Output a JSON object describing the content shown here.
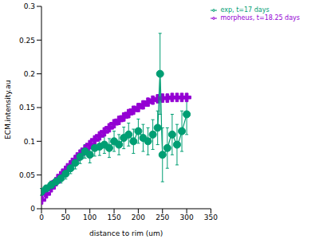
{
  "chart_data": {
    "type": "line",
    "xlabel": "distance to rim (um)",
    "ylabel": "ECM.intensity.au",
    "xlim": [
      0,
      350
    ],
    "xticks": [
      0,
      50,
      100,
      150,
      200,
      250,
      300,
      350
    ],
    "ylim": [
      0,
      0.3
    ],
    "yticks": [
      0,
      0.05,
      0.1,
      0.15,
      0.2,
      0.25,
      0.3
    ],
    "grid": false,
    "legend": "top right",
    "series": [
      {
        "name": "morpheus, t=18.25 days",
        "color": "#9400d3",
        "marker": "cross",
        "x": [
          0,
          10,
          20,
          30,
          40,
          50,
          60,
          70,
          80,
          90,
          100,
          110,
          120,
          130,
          140,
          150,
          160,
          170,
          180,
          190,
          200,
          210,
          220,
          230,
          240,
          250,
          260,
          270,
          280,
          290,
          300
        ],
        "values": [
          0.013,
          0.022,
          0.031,
          0.04,
          0.049,
          0.057,
          0.065,
          0.073,
          0.081,
          0.088,
          0.095,
          0.102,
          0.108,
          0.114,
          0.12,
          0.126,
          0.131,
          0.136,
          0.141,
          0.146,
          0.15,
          0.154,
          0.158,
          0.161,
          0.163,
          0.164,
          0.164,
          0.165,
          0.165,
          0.165,
          0.165
        ]
      },
      {
        "name": "exp, t=17 days",
        "color": "#009e73",
        "marker": "circle",
        "x": [
          0,
          10,
          20,
          30,
          40,
          50,
          60,
          70,
          80,
          90,
          100,
          110,
          120,
          130,
          140,
          150,
          160,
          170,
          180,
          190,
          200,
          210,
          220,
          230,
          240,
          245,
          250,
          260,
          270,
          280,
          290,
          300
        ],
        "values": [
          0.025,
          0.03,
          0.035,
          0.04,
          0.045,
          0.052,
          0.06,
          0.068,
          0.077,
          0.085,
          0.08,
          0.09,
          0.092,
          0.095,
          0.09,
          0.1,
          0.095,
          0.105,
          0.11,
          0.1,
          0.115,
          0.105,
          0.1,
          0.11,
          0.12,
          0.2,
          0.08,
          0.09,
          0.11,
          0.095,
          0.115,
          0.14
        ],
        "errors": [
          0.005,
          0.005,
          0.006,
          0.006,
          0.007,
          0.008,
          0.008,
          0.009,
          0.01,
          0.01,
          0.012,
          0.012,
          0.013,
          0.013,
          0.014,
          0.015,
          0.015,
          0.016,
          0.017,
          0.018,
          0.018,
          0.02,
          0.02,
          0.022,
          0.025,
          0.06,
          0.04,
          0.03,
          0.03,
          0.03,
          0.03,
          0.03
        ]
      }
    ]
  }
}
